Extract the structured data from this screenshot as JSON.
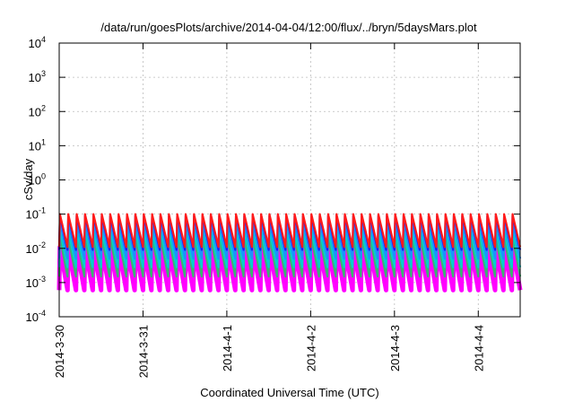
{
  "chart_data": {
    "type": "line",
    "title": "/data/run/goesPlots/archive/2014-04-04/12:00/flux/../bryn/5daysMars.plot",
    "xlabel": "Coordinated Universal Time (UTC)",
    "ylabel": "cSv/day",
    "yscale": "log",
    "ylim": [
      0.0001,
      10000
    ],
    "y_ticks": [
      {
        "value": 0.0001,
        "exp": "-4"
      },
      {
        "value": 0.001,
        "exp": "-3"
      },
      {
        "value": 0.01,
        "exp": "-2"
      },
      {
        "value": 0.1,
        "exp": "-1"
      },
      {
        "value": 1,
        "exp": "0"
      },
      {
        "value": 10,
        "exp": "1"
      },
      {
        "value": 100,
        "exp": "2"
      },
      {
        "value": 1000,
        "exp": "3"
      },
      {
        "value": 10000,
        "exp": "4"
      }
    ],
    "y_tick_base": "10",
    "xlim": [
      "2014-03-30",
      "2014-04-04T12:00"
    ],
    "x_ticks": [
      {
        "value": "2014-03-30",
        "label": "2014-3-30"
      },
      {
        "value": "2014-03-31",
        "label": "2014-3-31"
      },
      {
        "value": "2014-04-01",
        "label": "2014-4-1"
      },
      {
        "value": "2014-04-02",
        "label": "2014-4-2"
      },
      {
        "value": "2014-04-03",
        "label": "2014-4-3"
      },
      {
        "value": "2014-04-04",
        "label": "2014-4-4"
      }
    ],
    "grid": true,
    "pattern": "sawtooth",
    "sawtooth_period_hours": 2.4,
    "series": [
      {
        "color": "#ff00ff",
        "peak": 0.011,
        "trough": 0.0006
      },
      {
        "color": "#3cb371",
        "peak": 0.02,
        "trough": 0.0015
      },
      {
        "color": "#00cfcf",
        "peak": 0.035,
        "trough": 0.0028
      },
      {
        "color": "#1e90ff",
        "peak": 0.06,
        "trough": 0.005
      },
      {
        "color": "#1a1aff",
        "peak": 0.09,
        "trough": 0.009
      },
      {
        "color": "#ff1a1a",
        "peak": 0.1,
        "trough": 0.011
      }
    ]
  }
}
